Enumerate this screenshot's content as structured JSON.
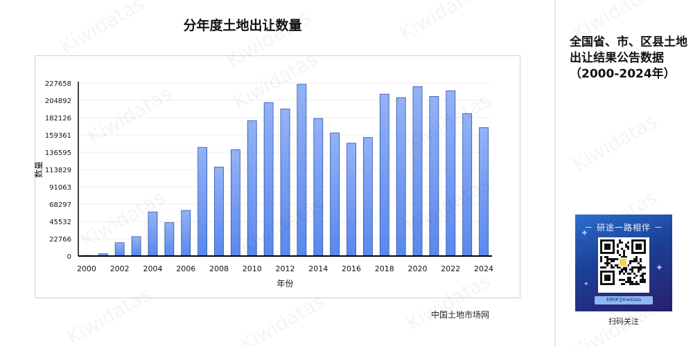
{
  "title": "分年度土地出让数量",
  "side_title": "全国省、市、区县土地出让结果公告数据（2000-2024年）",
  "source": "中国土地市场网",
  "watermark": "Kiwidatas",
  "qr": {
    "slogan": "－ 研途一路相伴 －",
    "footer": "扫码关注KiwiData",
    "caption": "扫码关注"
  },
  "chart_data": {
    "type": "bar",
    "title": "分年度土地出让数量",
    "xlabel": "年份",
    "ylabel": "数量",
    "categories": [
      "2000",
      "2001",
      "2002",
      "2003",
      "2004",
      "2005",
      "2006",
      "2007",
      "2008",
      "2009",
      "2010",
      "2011",
      "2012",
      "2013",
      "2014",
      "2015",
      "2016",
      "2017",
      "2018",
      "2019",
      "2020",
      "2021",
      "2022",
      "2023",
      "2024"
    ],
    "values": [
      800,
      3000,
      17500,
      25500,
      58000,
      44000,
      60000,
      143000,
      117000,
      140000,
      178000,
      202000,
      193500,
      226000,
      181000,
      162000,
      148500,
      156000,
      213000,
      208500,
      223000,
      210000,
      217500,
      187500,
      169000
    ],
    "x_tick_labels": [
      "2000",
      "2002",
      "2004",
      "2006",
      "2008",
      "2010",
      "2012",
      "2014",
      "2016",
      "2018",
      "2020",
      "2022",
      "2024"
    ],
    "y_ticks": [
      0,
      22766,
      45532,
      68297,
      91063,
      113829,
      136595,
      159361,
      182126,
      204892,
      227658
    ],
    "ylim": [
      0,
      227658
    ],
    "grid": true,
    "colors": {
      "bar_top": "#93b2f7",
      "bar_bottom": "#5a88ec",
      "bar_edge": "#2c4fa8",
      "axis": "#000000",
      "frame": "#c9cdf0"
    }
  }
}
